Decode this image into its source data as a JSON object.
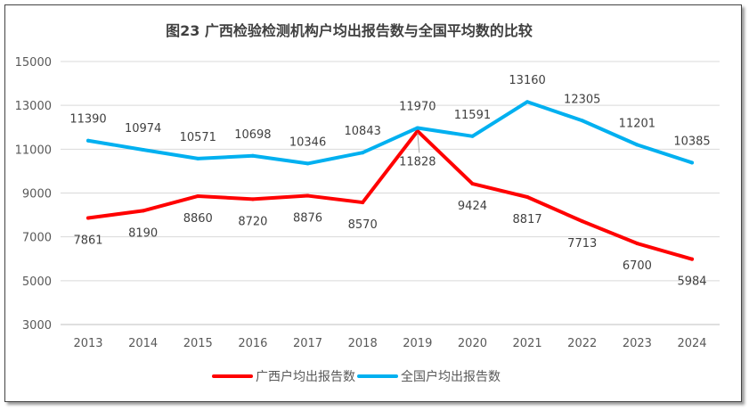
{
  "chart_data": {
    "type": "line",
    "title": "图23 广西检验检测机构户均出报告数与全国平均数的比较",
    "categories": [
      "2013",
      "2014",
      "2015",
      "2016",
      "2017",
      "2018",
      "2019",
      "2020",
      "2021",
      "2022",
      "2023",
      "2024"
    ],
    "series": [
      {
        "name": "广西户均出报告数",
        "color": "#ff0000",
        "values": [
          7861,
          8190,
          8860,
          8720,
          8876,
          8570,
          11828,
          9424,
          8817,
          7713,
          6700,
          5984
        ]
      },
      {
        "name": "全国户均出报告数",
        "color": "#00b0f0",
        "values": [
          11390,
          10974,
          10571,
          10698,
          10346,
          10843,
          11970,
          11591,
          13160,
          12305,
          11201,
          10385
        ]
      }
    ],
    "ylim": [
      3000,
      15000
    ],
    "yticks": [
      "3000",
      "5000",
      "7000",
      "9000",
      "11000",
      "13000",
      "15000"
    ],
    "grid": true,
    "legend": "bottom"
  }
}
